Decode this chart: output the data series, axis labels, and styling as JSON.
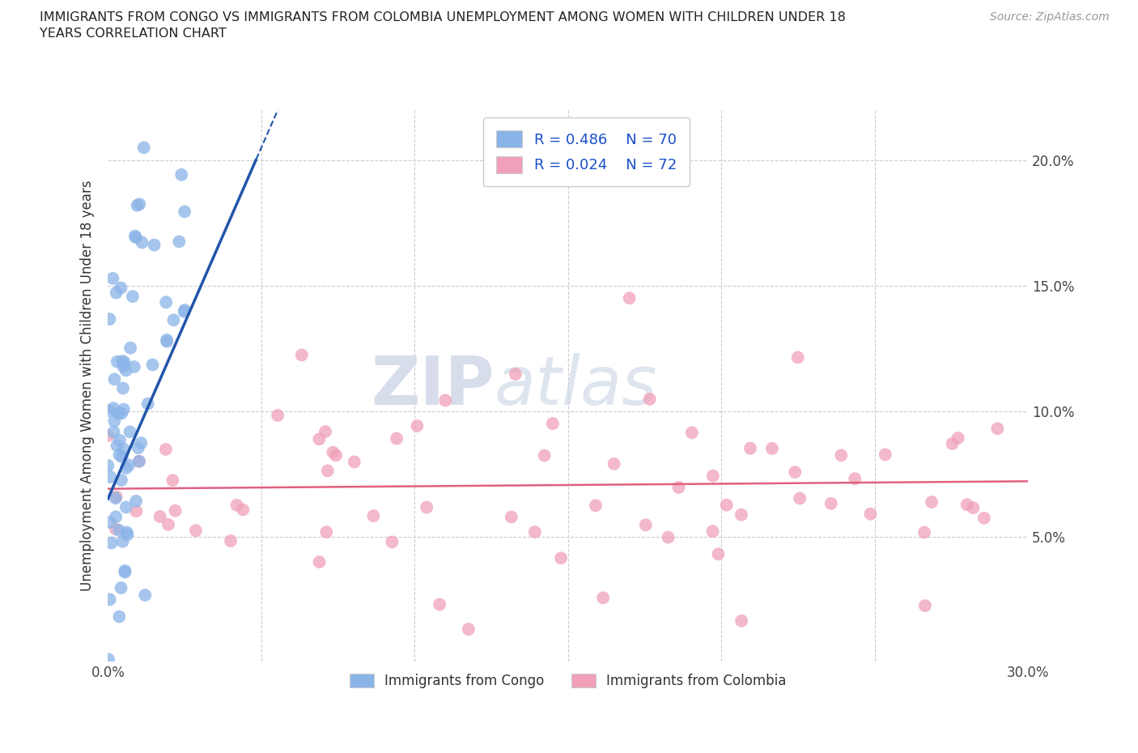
{
  "title": "IMMIGRANTS FROM CONGO VS IMMIGRANTS FROM COLOMBIA UNEMPLOYMENT AMONG WOMEN WITH CHILDREN UNDER 18\nYEARS CORRELATION CHART",
  "source": "Source: ZipAtlas.com",
  "ylabel": "Unemployment Among Women with Children Under 18 years",
  "xlim": [
    0.0,
    0.3
  ],
  "ylim": [
    0.0,
    0.22
  ],
  "congo_color": "#8ab4e8",
  "colombia_color": "#f0a0b8",
  "congo_line_color": "#2255aa",
  "colombia_line_color": "#e06080",
  "watermark_zip": "ZIP",
  "watermark_atlas": "atlas",
  "legend_R_congo": "R = 0.486",
  "legend_N_congo": "N = 70",
  "legend_R_colombia": "R = 0.024",
  "legend_N_colombia": "N = 72",
  "legend_text_color": "#1a50c8",
  "grid_color": "#cccccc",
  "title_fontsize": 11.5,
  "source_fontsize": 10,
  "ylabel_fontsize": 12,
  "tick_fontsize": 12,
  "legend_fontsize": 13
}
